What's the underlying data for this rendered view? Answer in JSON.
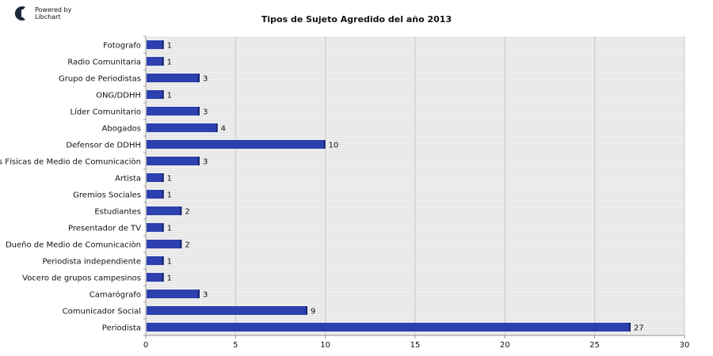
{
  "branding": {
    "line1": "Powered by",
    "line2": "Libchart"
  },
  "chart_data": {
    "type": "bar",
    "orientation": "horizontal",
    "title": "Tipos de Sujeto Agredido del año 2013",
    "categories": [
      "Fotografo",
      "Radio Comunitaria",
      "Grupo de Periodistas",
      "ONG/DDHH",
      "Líder Comunitario",
      "Abogados",
      "Defensor de DDHH",
      "Instalaciones Físicas de Medio de Comunicaciòn",
      "Artista",
      "Gremios Sociales",
      "Estudiantes",
      "Presentador de TV",
      "Dueño de Medio de Comunicaciòn",
      "Periodista independiente",
      "Vocero de grupos campesinos",
      "Camarógrafo",
      "Comunicador Social",
      "Periodista"
    ],
    "values": [
      1,
      1,
      3,
      1,
      3,
      4,
      10,
      3,
      1,
      1,
      2,
      1,
      2,
      1,
      1,
      3,
      9,
      27
    ],
    "xlim": [
      0,
      30
    ],
    "xticks": [
      0,
      5,
      10,
      15,
      20,
      25,
      30
    ],
    "grid": true,
    "data_labels": true,
    "colors": {
      "bar": "#2c40b0",
      "bar_edge": "#17236b",
      "grid_bg": "#f2f2f2",
      "grid_line": "#d9d9d9"
    }
  }
}
